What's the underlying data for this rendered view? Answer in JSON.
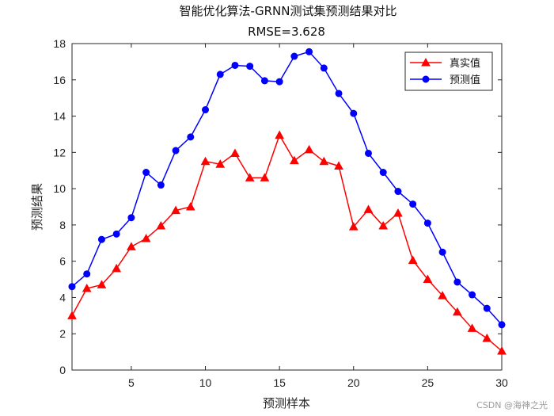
{
  "chart_data": {
    "type": "line",
    "title": "智能优化算法-GRNN测试集预测结果对比",
    "subtitle": "RMSE=3.628",
    "xlabel": "预测样本",
    "ylabel": "预测结果",
    "xlim": [
      1,
      30
    ],
    "ylim": [
      0,
      18
    ],
    "xticks": [
      5,
      10,
      15,
      20,
      25,
      30
    ],
    "yticks": [
      0,
      2,
      4,
      6,
      8,
      10,
      12,
      14,
      16,
      18
    ],
    "grid": false,
    "legend_position": "top-right",
    "x": [
      1,
      2,
      3,
      4,
      5,
      6,
      7,
      8,
      9,
      10,
      11,
      12,
      13,
      14,
      15,
      16,
      17,
      18,
      19,
      20,
      21,
      22,
      23,
      24,
      25,
      26,
      27,
      28,
      29,
      30
    ],
    "series": [
      {
        "name": "真实值",
        "color": "#ff0000",
        "marker": "triangle",
        "values": [
          3.0,
          4.5,
          4.7,
          5.6,
          6.8,
          7.25,
          7.95,
          8.8,
          9.0,
          11.5,
          11.35,
          11.95,
          10.6,
          10.6,
          12.95,
          11.55,
          12.15,
          11.5,
          11.25,
          7.9,
          8.85,
          7.95,
          8.65,
          6.05,
          5.0,
          4.1,
          3.2,
          2.3,
          1.75,
          1.05
        ]
      },
      {
        "name": "预测值",
        "color": "#0000ff",
        "marker": "circle",
        "values": [
          4.6,
          5.3,
          7.2,
          7.5,
          8.4,
          10.9,
          10.2,
          12.1,
          12.85,
          14.35,
          16.3,
          16.8,
          16.75,
          15.95,
          15.9,
          17.3,
          17.55,
          16.65,
          15.25,
          14.15,
          11.95,
          10.9,
          9.85,
          9.15,
          8.1,
          6.5,
          4.85,
          4.15,
          3.4,
          2.5
        ]
      }
    ]
  },
  "watermark": "CSDN @海神之光"
}
